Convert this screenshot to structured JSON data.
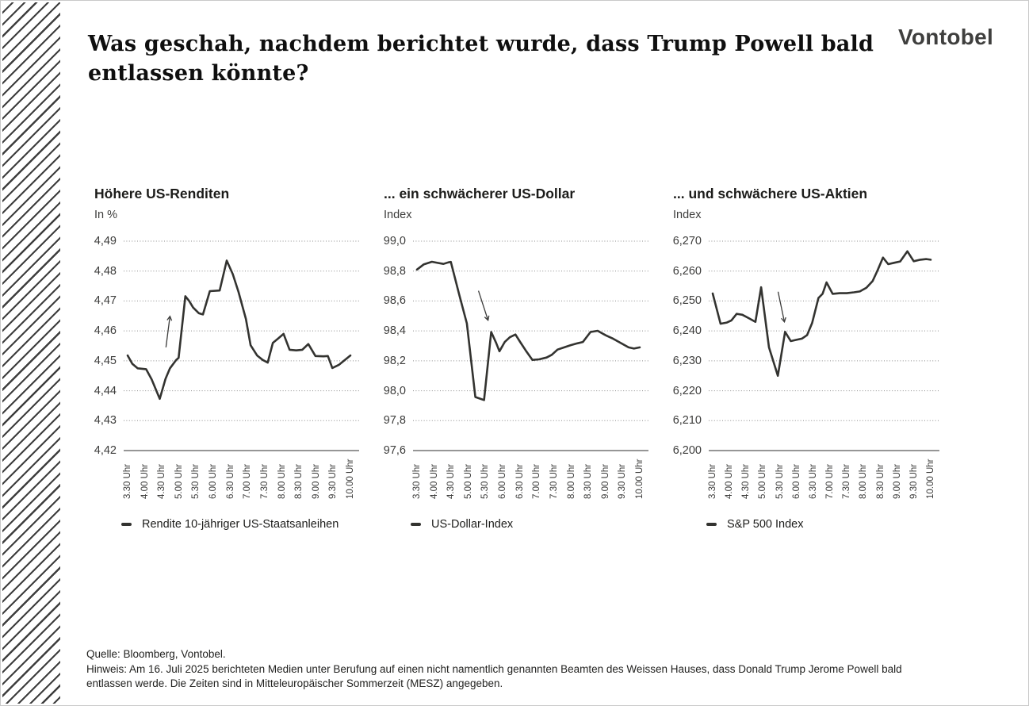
{
  "page": {
    "title_line1": "Was geschah, nachdem berichtet wurde, dass Trump Powell bald",
    "title_line2": "entlassen könnte?",
    "logo": "Vontobel",
    "source": "Quelle: Bloomberg, Vontobel.",
    "note": "Hinweis: Am 16. Juli 2025 berichteten Medien unter Berufung auf einen nicht namentlich genannten Beamten des Weissen Hauses, dass Donald Trump Jerome Powell bald entlassen werde. Die Zeiten sind in Mitteleuropäischer Sommerzeit (MESZ) angegeben."
  },
  "colors": {
    "line": "#333330",
    "grid_dots": "#8c8c8c",
    "axis_baseline": "#2e2e2c",
    "tick_text": "#3c3c3b",
    "title_text": "#0f0f0f",
    "logo_text": "#3f3f3e",
    "arrow": "#3c3c3b"
  },
  "chart_data": [
    {
      "type": "line",
      "title": "Höhere US-Renditen",
      "unit": "In %",
      "legend": "Rendite 10-jähriger US-Staatsanleihen",
      "ylim": [
        4.42,
        4.49
      ],
      "y_ticks": [
        "4,49",
        "4,48",
        "4,47",
        "4,46",
        "4,45",
        "4,44",
        "4,43",
        "4,42"
      ],
      "x_tick_labels": [
        "3.30 Uhr",
        "4.00 Uhr",
        "4.30 Uhr",
        "5.00 Uhr",
        "5.30 Uhr",
        "6.00 Uhr",
        "6.30 Uhr",
        "7.00 Uhr",
        "7.30 Uhr",
        "8.00 Uhr",
        "8.30 Uhr",
        "9.00 Uhr",
        "9.30 Uhr",
        "10.00 Uhr"
      ],
      "points": [
        [
          0,
          4.4518
        ],
        [
          0.021,
          4.449
        ],
        [
          0.045,
          4.4475
        ],
        [
          0.083,
          4.4472
        ],
        [
          0.108,
          4.4438
        ],
        [
          0.144,
          4.4373
        ],
        [
          0.17,
          4.444
        ],
        [
          0.19,
          4.4475
        ],
        [
          0.217,
          4.4502
        ],
        [
          0.229,
          4.451
        ],
        [
          0.259,
          4.4716
        ],
        [
          0.276,
          4.47
        ],
        [
          0.294,
          4.4678
        ],
        [
          0.32,
          4.4659
        ],
        [
          0.338,
          4.4655
        ],
        [
          0.369,
          4.4733
        ],
        [
          0.413,
          4.4735
        ],
        [
          0.445,
          4.4835
        ],
        [
          0.472,
          4.479
        ],
        [
          0.498,
          4.473
        ],
        [
          0.531,
          4.464
        ],
        [
          0.552,
          4.4552
        ],
        [
          0.581,
          4.4518
        ],
        [
          0.606,
          4.4503
        ],
        [
          0.629,
          4.4494
        ],
        [
          0.652,
          4.456
        ],
        [
          0.676,
          4.4575
        ],
        [
          0.7,
          4.459
        ],
        [
          0.727,
          4.4537
        ],
        [
          0.757,
          4.4535
        ],
        [
          0.784,
          4.4537
        ],
        [
          0.811,
          4.4556
        ],
        [
          0.843,
          4.4516
        ],
        [
          0.879,
          4.4515
        ],
        [
          0.899,
          4.4516
        ],
        [
          0.919,
          4.4476
        ],
        [
          0.949,
          4.4487
        ],
        [
          1,
          4.4518
        ]
      ],
      "annotation": {
        "type": "arrow",
        "from": [
          0.172,
          4.4545
        ],
        "to": [
          0.19,
          4.4649
        ]
      }
    },
    {
      "type": "line",
      "title": "... ein schwächerer US-Dollar",
      "unit": "Index",
      "legend": "US-Dollar-Index",
      "ylim": [
        97.6,
        99.0
      ],
      "y_ticks": [
        "99,0",
        "98,8",
        "98,6",
        "98,4",
        "98,2",
        "98,0",
        "97,8",
        "97,6"
      ],
      "x_tick_labels": [
        "3.30 Uhr",
        "4.00 Uhr",
        "4.30 Uhr",
        "5.00 Uhr",
        "5.30 Uhr",
        "6.00 Uhr",
        "6.30 Uhr",
        "7.00 Uhr",
        "7.30 Uhr",
        "8.00 Uhr",
        "8.30 Uhr",
        "9.00 Uhr",
        "9.30 Uhr",
        "10.00 Uhr"
      ],
      "points": [
        [
          0,
          98.81
        ],
        [
          0.031,
          98.845
        ],
        [
          0.067,
          98.862
        ],
        [
          0.095,
          98.854
        ],
        [
          0.119,
          98.848
        ],
        [
          0.14,
          98.858
        ],
        [
          0.152,
          98.861
        ],
        [
          0.19,
          98.64
        ],
        [
          0.224,
          98.45
        ],
        [
          0.262,
          97.958
        ],
        [
          0.281,
          97.948
        ],
        [
          0.301,
          97.938
        ],
        [
          0.333,
          98.393
        ],
        [
          0.355,
          98.32
        ],
        [
          0.37,
          98.264
        ],
        [
          0.394,
          98.326
        ],
        [
          0.417,
          98.358
        ],
        [
          0.442,
          98.376
        ],
        [
          0.464,
          98.324
        ],
        [
          0.488,
          98.27
        ],
        [
          0.518,
          98.206
        ],
        [
          0.548,
          98.21
        ],
        [
          0.582,
          98.222
        ],
        [
          0.605,
          98.24
        ],
        [
          0.631,
          98.275
        ],
        [
          0.661,
          98.29
        ],
        [
          0.69,
          98.305
        ],
        [
          0.72,
          98.317
        ],
        [
          0.745,
          98.326
        ],
        [
          0.779,
          98.393
        ],
        [
          0.811,
          98.401
        ],
        [
          0.848,
          98.37
        ],
        [
          0.881,
          98.347
        ],
        [
          0.914,
          98.32
        ],
        [
          0.95,
          98.29
        ],
        [
          0.974,
          98.282
        ],
        [
          1,
          98.29
        ]
      ],
      "annotation": {
        "type": "arrow",
        "from": [
          0.276,
          98.668
        ],
        "to": [
          0.319,
          98.471
        ]
      }
    },
    {
      "type": "line",
      "title": "... und schwächere US-Aktien",
      "unit": "Index",
      "legend": "S&P 500 Index",
      "ylim": [
        6200,
        6270
      ],
      "y_ticks": [
        "6,270",
        "6,260",
        "6,250",
        "6,240",
        "6,230",
        "6,220",
        "6,210",
        "6,200"
      ],
      "x_tick_labels": [
        "3.30 Uhr",
        "4.00 Uhr",
        "4.30 Uhr",
        "5.00 Uhr",
        "5.30 Uhr",
        "6.00 Uhr",
        "6.30 Uhr",
        "7.00 Uhr",
        "7.30 Uhr",
        "8.00 Uhr",
        "8.30 Uhr",
        "9.00 Uhr",
        "9.30 Uhr",
        "10.00 Uhr"
      ],
      "points": [
        [
          0,
          6252.5
        ],
        [
          0.036,
          6242.4
        ],
        [
          0.065,
          6242.8
        ],
        [
          0.086,
          6243.5
        ],
        [
          0.11,
          6245.7
        ],
        [
          0.136,
          6245.4
        ],
        [
          0.164,
          6244.3
        ],
        [
          0.196,
          6243
        ],
        [
          0.222,
          6254.6
        ],
        [
          0.258,
          6234.5
        ],
        [
          0.299,
          6225
        ],
        [
          0.332,
          6239.7
        ],
        [
          0.358,
          6236.6
        ],
        [
          0.382,
          6237
        ],
        [
          0.409,
          6237.4
        ],
        [
          0.433,
          6238.6
        ],
        [
          0.456,
          6242.6
        ],
        [
          0.485,
          6251
        ],
        [
          0.504,
          6252.4
        ],
        [
          0.522,
          6256.2
        ],
        [
          0.55,
          6252.4
        ],
        [
          0.583,
          6252.6
        ],
        [
          0.615,
          6252.6
        ],
        [
          0.648,
          6252.9
        ],
        [
          0.675,
          6253.2
        ],
        [
          0.705,
          6254.4
        ],
        [
          0.734,
          6256.7
        ],
        [
          0.756,
          6260.2
        ],
        [
          0.781,
          6264.5
        ],
        [
          0.805,
          6262.3
        ],
        [
          0.834,
          6262.8
        ],
        [
          0.86,
          6263.2
        ],
        [
          0.893,
          6266.6
        ],
        [
          0.922,
          6263.3
        ],
        [
          0.952,
          6263.8
        ],
        [
          0.98,
          6264
        ],
        [
          1,
          6263.8
        ]
      ],
      "annotation": {
        "type": "arrow",
        "from": [
          0.3,
          6253.1
        ],
        "to": [
          0.329,
          6243
        ]
      }
    }
  ]
}
